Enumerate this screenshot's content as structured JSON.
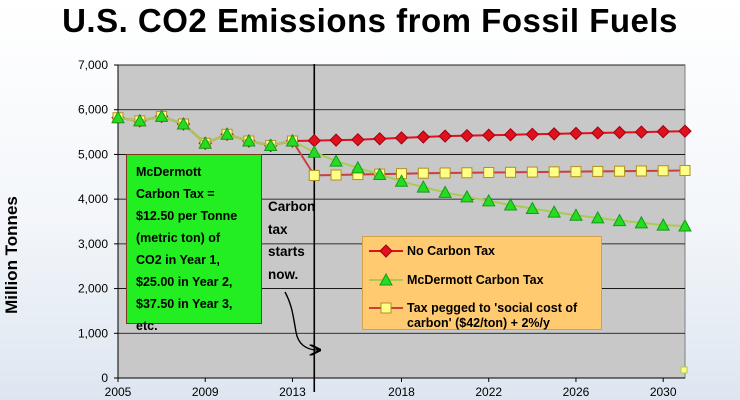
{
  "chart_data": {
    "type": "line",
    "title": "U.S. CO2 Emissions from Fossil Fuels",
    "ylabel": "Million Tonnes",
    "xlabel": "",
    "ylim": [
      0,
      7000
    ],
    "xlim": [
      2005,
      2031
    ],
    "yticks": [
      "0",
      "1,000",
      "2,000",
      "3,000",
      "4,000",
      "5,000",
      "6,000",
      "7,000"
    ],
    "xticks": [
      "2005",
      "2009",
      "2013",
      "2018",
      "2022",
      "2026",
      "2030"
    ],
    "grid": true,
    "legend_position": "lower-right",
    "series": [
      {
        "name": "No Carbon Tax",
        "color": "#e0101c",
        "marker": "diamond",
        "x": [
          2005,
          2006,
          2007,
          2008,
          2009,
          2010,
          2011,
          2012,
          2013,
          2014,
          2015,
          2016,
          2017,
          2018,
          2019,
          2020,
          2021,
          2022,
          2023,
          2024,
          2025,
          2026,
          2027,
          2028,
          2029,
          2030,
          2031
        ],
        "y": [
          5820,
          5750,
          5850,
          5680,
          5250,
          5450,
          5300,
          5200,
          5300,
          5310,
          5320,
          5330,
          5350,
          5370,
          5390,
          5410,
          5420,
          5430,
          5440,
          5450,
          5460,
          5470,
          5480,
          5490,
          5500,
          5510,
          5520
        ]
      },
      {
        "name": "McDermott Carbon Tax",
        "color": "#a8cc50",
        "marker": "triangle",
        "x": [
          2005,
          2006,
          2007,
          2008,
          2009,
          2010,
          2011,
          2012,
          2013,
          2014,
          2015,
          2016,
          2017,
          2018,
          2019,
          2020,
          2021,
          2022,
          2023,
          2024,
          2025,
          2026,
          2027,
          2028,
          2029,
          2030,
          2031
        ],
        "y": [
          5820,
          5750,
          5850,
          5680,
          5250,
          5450,
          5300,
          5200,
          5300,
          5050,
          4850,
          4700,
          4550,
          4400,
          4270,
          4150,
          4050,
          3960,
          3870,
          3790,
          3710,
          3640,
          3580,
          3520,
          3470,
          3420,
          3400
        ]
      },
      {
        "name": "Tax pegged to 'social cost of carbon' ($42/ton) + 2%/y",
        "color": "#c84040",
        "marker": "square",
        "x": [
          2005,
          2006,
          2007,
          2008,
          2009,
          2010,
          2011,
          2012,
          2013,
          2014,
          2015,
          2016,
          2017,
          2018,
          2019,
          2020,
          2021,
          2022,
          2023,
          2024,
          2025,
          2026,
          2027,
          2028,
          2029,
          2030,
          2031
        ],
        "y": [
          5820,
          5750,
          5850,
          5680,
          5250,
          5450,
          5300,
          5200,
          5300,
          4530,
          4540,
          4550,
          4560,
          4570,
          4580,
          4585,
          4590,
          4595,
          4600,
          4605,
          4610,
          4615,
          4620,
          4625,
          4630,
          4635,
          4640
        ]
      }
    ],
    "annotations": {
      "tax_start_year": 2014,
      "mcdermott_box": "McDermott\nCarbon Tax =\n$12.50 per Tonne\n(metric ton) of\nCO2 in Year 1,\n$25.00 in Year 2,\n$37.50 in Year 3,\netc.",
      "tax_note": "Carbon\ntax\nstarts\nnow."
    },
    "colors": {
      "plot_background": "#c8c8c8",
      "box_background": "#22ee22",
      "legend_background": "#ffca70",
      "marker_fill_no_tax": "#e0101c",
      "marker_fill_mcdermott": "#22dd22",
      "marker_fill_social": "#ffff88"
    }
  }
}
